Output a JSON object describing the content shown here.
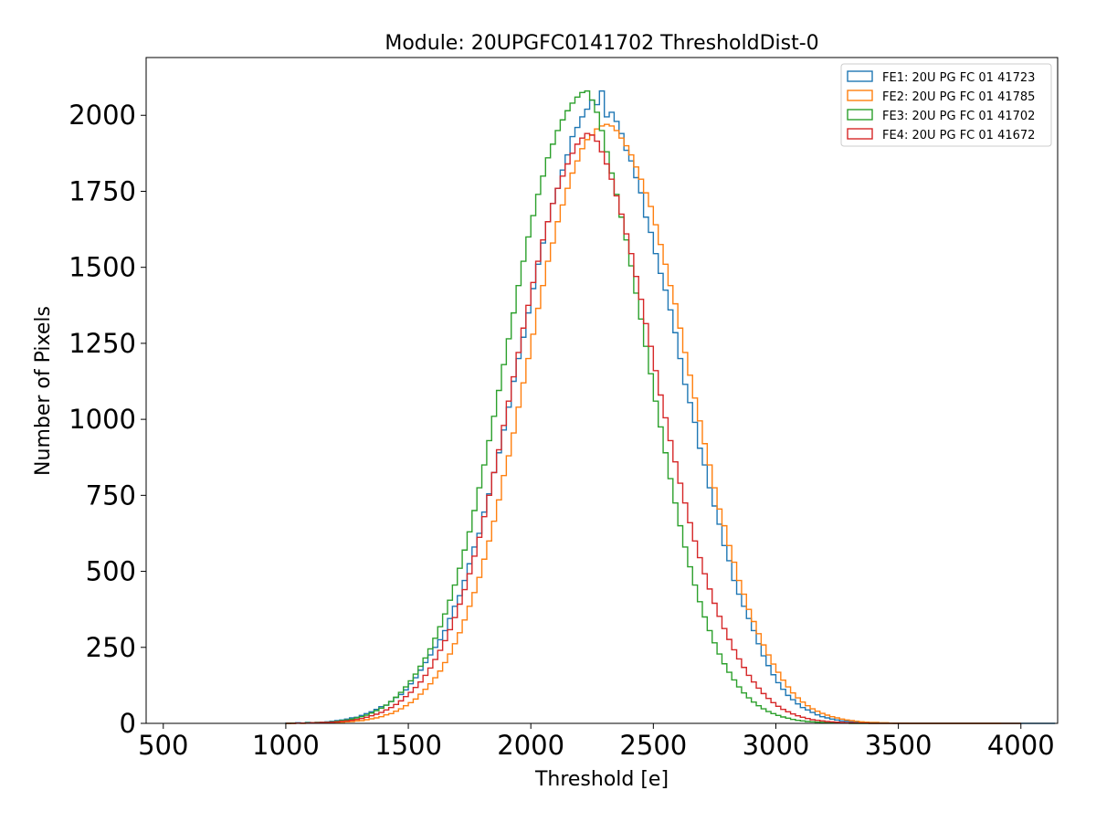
{
  "chart_data": {
    "type": "histogram",
    "title": "Module: 20UPGFC0141702 ThresholdDist-0",
    "xlabel": "Threshold [e]",
    "ylabel": "Number of Pixels",
    "xlim": [
      430,
      4150
    ],
    "ylim": [
      0,
      2190
    ],
    "x_ticks": [
      500,
      1000,
      1500,
      2000,
      2500,
      3000,
      3500,
      4000
    ],
    "x_tick_labels": [
      "500",
      "1000",
      "1500",
      "2000",
      "2500",
      "3000",
      "3500",
      "4000"
    ],
    "y_ticks": [
      0,
      250,
      500,
      750,
      1000,
      1250,
      1500,
      1750,
      2000
    ],
    "y_tick_labels": [
      "0",
      "250",
      "500",
      "750",
      "1000",
      "1250",
      "1500",
      "1750",
      "2000"
    ],
    "grid": false,
    "legend_position": "upper right",
    "bin_range": [
      1000,
      4000
    ],
    "bin_width": 20,
    "series": [
      {
        "name": "FE1: 20U PG FC 01 41723",
        "color": "#1f77b4",
        "values": [
          1,
          1,
          2,
          1,
          3,
          2,
          3,
          4,
          5,
          7,
          9,
          11,
          14,
          18,
          20,
          26,
          32,
          38,
          46,
          55,
          60,
          72,
          85,
          95,
          110,
          130,
          150,
          175,
          200,
          225,
          250,
          275,
          305,
          345,
          385,
          420,
          470,
          525,
          580,
          625,
          695,
          755,
          825,
          890,
          965,
          1040,
          1125,
          1200,
          1270,
          1350,
          1430,
          1510,
          1580,
          1650,
          1710,
          1760,
          1820,
          1870,
          1930,
          1960,
          1995,
          2020,
          2050,
          2035,
          2080,
          1995,
          2010,
          1980,
          1940,
          1885,
          1850,
          1795,
          1745,
          1665,
          1615,
          1545,
          1480,
          1425,
          1360,
          1285,
          1200,
          1115,
          1055,
          990,
          905,
          850,
          775,
          715,
          655,
          585,
          535,
          470,
          425,
          385,
          345,
          305,
          262,
          222,
          190,
          160,
          134,
          112,
          92,
          78,
          64,
          52,
          44,
          36,
          28,
          22,
          18,
          14,
          11,
          8,
          7,
          5,
          4,
          3,
          2,
          2,
          1,
          1,
          1,
          1,
          0,
          0,
          0,
          0,
          0,
          0,
          0,
          0,
          0,
          0,
          0,
          0,
          0,
          0,
          0,
          0,
          0,
          0,
          0,
          0,
          0,
          0,
          0,
          0,
          0,
          0,
          0,
          0,
          0,
          0,
          0,
          0,
          0
        ]
      },
      {
        "name": "FE2: 20U PG FC 01 41785",
        "color": "#ff7f0e",
        "values": [
          0,
          0,
          1,
          0,
          1,
          1,
          1,
          2,
          2,
          3,
          3,
          4,
          5,
          6,
          8,
          9,
          12,
          15,
          18,
          22,
          28,
          32,
          40,
          48,
          58,
          68,
          80,
          96,
          112,
          130,
          150,
          172,
          200,
          228,
          262,
          298,
          340,
          385,
          430,
          480,
          540,
          600,
          665,
          735,
          815,
          880,
          955,
          1040,
          1120,
          1200,
          1280,
          1365,
          1440,
          1520,
          1580,
          1650,
          1705,
          1760,
          1810,
          1850,
          1890,
          1920,
          1935,
          1955,
          1965,
          1970,
          1965,
          1950,
          1925,
          1900,
          1870,
          1830,
          1790,
          1745,
          1700,
          1640,
          1575,
          1510,
          1440,
          1380,
          1300,
          1220,
          1145,
          1070,
          995,
          920,
          850,
          775,
          705,
          650,
          585,
          530,
          470,
          425,
          375,
          335,
          295,
          258,
          225,
          195,
          168,
          142,
          120,
          100,
          84,
          70,
          58,
          48,
          40,
          33,
          27,
          22,
          18,
          14,
          11,
          9,
          7,
          5,
          4,
          3,
          3,
          2,
          2,
          1,
          1,
          1,
          1,
          0,
          0,
          0,
          0,
          0,
          0,
          0,
          0,
          0,
          0,
          0,
          0,
          0,
          0,
          0,
          0,
          0,
          0,
          0
        ]
      },
      {
        "name": "FE3: 20U PG FC 01 41702",
        "color": "#2ca02c",
        "values": [
          0,
          1,
          1,
          1,
          2,
          2,
          3,
          3,
          4,
          5,
          7,
          9,
          11,
          14,
          18,
          22,
          27,
          34,
          42,
          50,
          60,
          72,
          86,
          102,
          120,
          140,
          162,
          188,
          215,
          245,
          280,
          318,
          360,
          405,
          455,
          510,
          570,
          630,
          700,
          775,
          850,
          930,
          1010,
          1095,
          1180,
          1265,
          1350,
          1440,
          1520,
          1600,
          1670,
          1740,
          1800,
          1860,
          1905,
          1950,
          1985,
          2015,
          2040,
          2060,
          2075,
          2080,
          2050,
          2010,
          1950,
          1880,
          1810,
          1740,
          1665,
          1590,
          1505,
          1415,
          1330,
          1240,
          1150,
          1060,
          975,
          890,
          805,
          725,
          650,
          580,
          515,
          455,
          400,
          350,
          305,
          265,
          228,
          196,
          168,
          143,
          120,
          100,
          84,
          70,
          58,
          48,
          39,
          32,
          26,
          21,
          17,
          13,
          10,
          8,
          6,
          5,
          4,
          3,
          2,
          2,
          1,
          1,
          1,
          0,
          0,
          0,
          0,
          0,
          0,
          0,
          0,
          0,
          0,
          0,
          0,
          0,
          0,
          0,
          0,
          0,
          0,
          0,
          0,
          0,
          0,
          0,
          0,
          0,
          0,
          0,
          0,
          0,
          0,
          0,
          0,
          0,
          0,
          0
        ]
      },
      {
        "name": "FE4: 20U PG FC 01 41672",
        "color": "#d62728",
        "values": [
          0,
          0,
          1,
          1,
          1,
          2,
          2,
          3,
          3,
          4,
          5,
          7,
          8,
          10,
          13,
          16,
          20,
          25,
          30,
          36,
          44,
          52,
          62,
          74,
          88,
          102,
          118,
          136,
          158,
          182,
          210,
          240,
          272,
          308,
          348,
          392,
          440,
          492,
          550,
          612,
          680,
          750,
          825,
          900,
          980,
          1060,
          1140,
          1220,
          1300,
          1375,
          1450,
          1520,
          1590,
          1650,
          1710,
          1760,
          1800,
          1840,
          1875,
          1905,
          1925,
          1940,
          1935,
          1915,
          1880,
          1840,
          1790,
          1735,
          1675,
          1610,
          1545,
          1470,
          1395,
          1315,
          1240,
          1160,
          1080,
          1005,
          930,
          860,
          790,
          725,
          660,
          600,
          545,
          492,
          442,
          395,
          352,
          312,
          276,
          242,
          212,
          184,
          158,
          136,
          116,
          98,
          82,
          68,
          56,
          46,
          38,
          31,
          25,
          20,
          16,
          12,
          10,
          8,
          6,
          5,
          4,
          3,
          2,
          2,
          1,
          1,
          1,
          0,
          0,
          0,
          0,
          0,
          0,
          0,
          0,
          0,
          0,
          0,
          0,
          0,
          0,
          0,
          0,
          0,
          0,
          0,
          0,
          0,
          0,
          0,
          0,
          0,
          0,
          0,
          0,
          0,
          0,
          0
        ]
      }
    ]
  }
}
